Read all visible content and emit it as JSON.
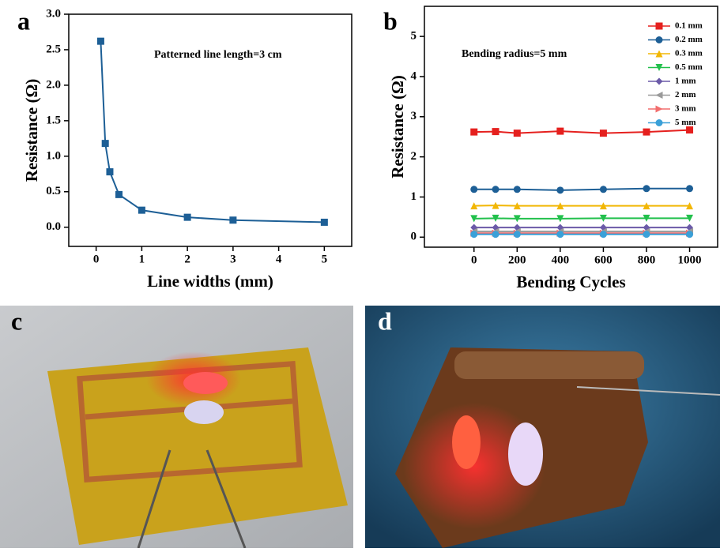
{
  "chart_data": [
    {
      "type": "line",
      "panel_label": "a",
      "annotation": "Patterned line length=3 cm",
      "x_label": "Line widths (mm)",
      "y_label": "Resistance (Ω)",
      "x": [
        0.1,
        0.2,
        0.3,
        0.5,
        1,
        2,
        3,
        5
      ],
      "values": [
        2.62,
        1.18,
        0.78,
        0.46,
        0.24,
        0.14,
        0.1,
        0.07
      ],
      "color": "#1d5f96",
      "marker": "square",
      "xlim": [
        -0.6,
        5.6
      ],
      "xticks": [
        0,
        1,
        2,
        3,
        4,
        5
      ],
      "ylim": [
        -0.27,
        3.0
      ],
      "yticks": [
        {
          "value": 0,
          "label": "0.0"
        },
        0.5,
        {
          "value": 1,
          "label": "1.0"
        },
        1.5,
        {
          "value": 2,
          "label": "2.0"
        },
        2.5,
        {
          "value": 3,
          "label": "3.0"
        }
      ]
    },
    {
      "type": "line",
      "panel_label": "b",
      "annotation": "Bending radius=5 mm",
      "x_label": "Bending Cycles",
      "y_label": "Resistance (Ω)",
      "x": [
        0,
        100,
        200,
        400,
        600,
        800,
        1000
      ],
      "legend": "top-right",
      "series": [
        {
          "name": "0.1 mm",
          "color": "#e5201e",
          "marker": "square",
          "values": [
            2.62,
            2.63,
            2.59,
            2.64,
            2.59,
            2.62,
            2.67
          ]
        },
        {
          "name": "0.2 mm",
          "color": "#1d5f96",
          "marker": "circle",
          "values": [
            1.19,
            1.19,
            1.19,
            1.17,
            1.19,
            1.21,
            1.21
          ]
        },
        {
          "name": "0.3 mm",
          "color": "#f2b705",
          "marker": "triangle-up",
          "values": [
            0.78,
            0.79,
            0.78,
            0.78,
            0.78,
            0.78,
            0.78
          ]
        },
        {
          "name": "0.5 mm",
          "color": "#22c04c",
          "marker": "triangle-down",
          "values": [
            0.46,
            0.47,
            0.46,
            0.46,
            0.47,
            0.47,
            0.47
          ]
        },
        {
          "name": "1 mm",
          "color": "#6b5aa8",
          "marker": "diamond",
          "values": [
            0.24,
            0.24,
            0.24,
            0.24,
            0.24,
            0.24,
            0.24
          ]
        },
        {
          "name": "2 mm",
          "color": "#9a9a9a",
          "marker": "triangle-left",
          "values": [
            0.14,
            0.14,
            0.14,
            0.14,
            0.14,
            0.14,
            0.14
          ]
        },
        {
          "name": "3 mm",
          "color": "#f26d6d",
          "marker": "triangle-right",
          "values": [
            0.1,
            0.1,
            0.1,
            0.1,
            0.1,
            0.1,
            0.1
          ]
        },
        {
          "name": "5 mm",
          "color": "#3aa0d8",
          "marker": "circle",
          "values": [
            0.07,
            0.07,
            0.07,
            0.07,
            0.07,
            0.07,
            0.07
          ]
        }
      ],
      "xlim": [
        -230,
        1130
      ],
      "xticks": [
        0,
        200,
        400,
        600,
        800,
        1000
      ],
      "ylim": [
        -0.25,
        5.75
      ],
      "yticks": [
        0,
        1,
        2,
        3,
        4,
        5
      ]
    }
  ],
  "photos": [
    {
      "label": "c"
    },
    {
      "label": "d"
    }
  ]
}
